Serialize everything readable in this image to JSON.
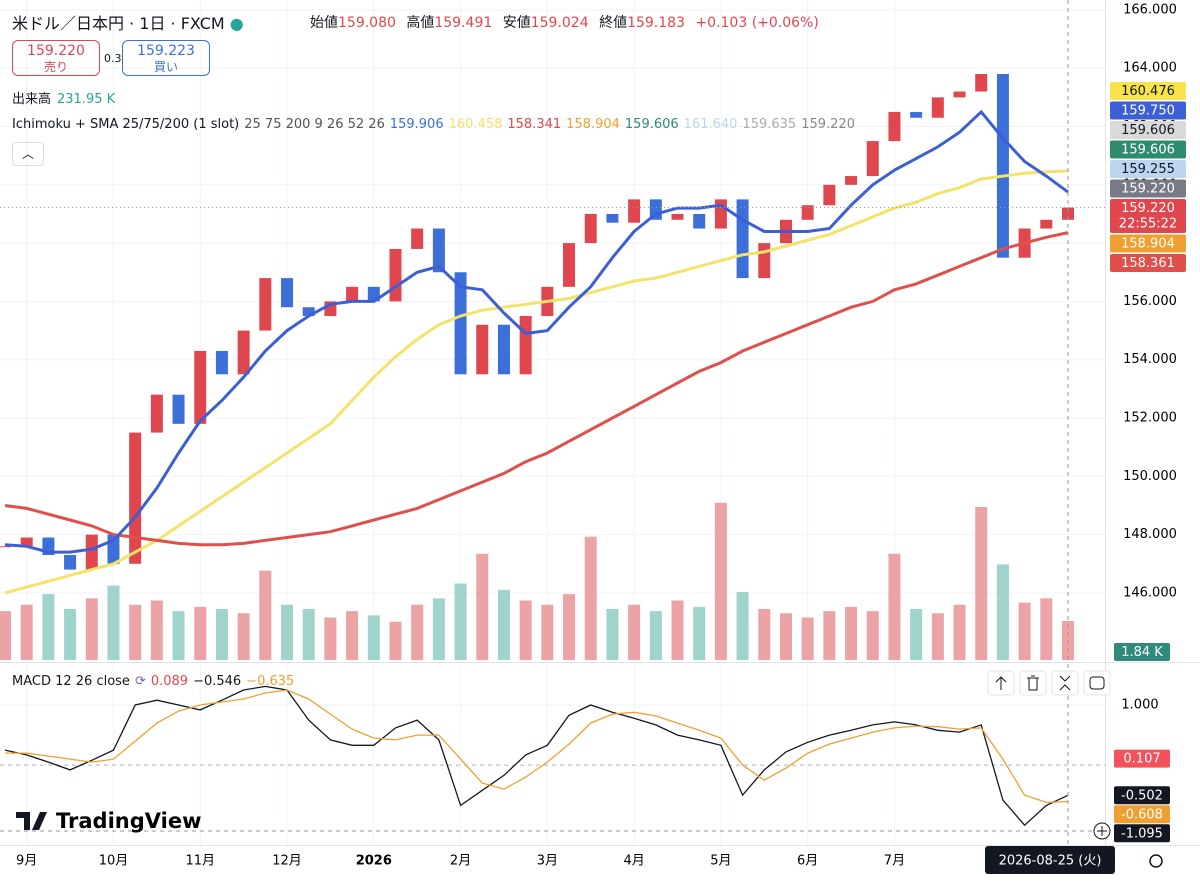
{
  "header": {
    "symbol": "米ドル／日本円 · 1日 · FXCM",
    "ohlc": [
      {
        "label": "始値",
        "value": "159.080"
      },
      {
        "label": "高値",
        "value": "159.491"
      },
      {
        "label": "安値",
        "value": "159.024"
      },
      {
        "label": "終値",
        "value": "159.183"
      }
    ],
    "change": "+0.103 (+0.06%)"
  },
  "trade": {
    "sell_price": "159.220",
    "sell": "売り",
    "spread": "0.3",
    "buy_price": "159.223",
    "buy": "買い"
  },
  "volume_row": {
    "label": "出来高",
    "value": "231.95 K"
  },
  "indicator": {
    "name": "Ichimoku + SMA 25/75/200 (1 slot)",
    "params": "25 75 200 9 26 52 26",
    "values": [
      {
        "text": "159.906",
        "color": "#3d6fd8"
      },
      {
        "text": "160.458",
        "color": "#f3e36a"
      },
      {
        "text": "158.341",
        "color": "#e0464e"
      },
      {
        "text": "158.904",
        "color": "#f0a030"
      },
      {
        "text": "159.606",
        "color": "#2e8b6e"
      },
      {
        "text": "161.640",
        "color": "#bcd6f0"
      },
      {
        "text": "159.635",
        "color": "#aaaaaa"
      },
      {
        "text": "159.220",
        "color": "#888888"
      }
    ]
  },
  "macd_row": {
    "name": "MACD 12 26 close",
    "values": [
      {
        "text": "0.089",
        "color": "#e0464e"
      },
      {
        "text": "−0.546",
        "color": "#131722"
      },
      {
        "text": "−0.635",
        "color": "#f0a030"
      }
    ]
  },
  "crosshair_date": "2026-08-25 (火)",
  "logo": "TradingView",
  "chart_data": {
    "type": "candlestick",
    "categories": [
      null,
      "9月",
      null,
      null,
      null,
      "10月",
      null,
      null,
      null,
      "11月",
      null,
      null,
      null,
      "12月",
      null,
      null,
      null,
      "2026",
      null,
      null,
      null,
      "2月",
      null,
      null,
      null,
      "3月",
      null,
      null,
      null,
      "4月",
      null,
      null,
      null,
      "5月",
      null,
      null,
      null,
      "6月",
      null,
      null,
      null,
      "7月",
      null,
      null,
      null,
      null,
      null,
      null,
      null,
      null
    ],
    "close": [
      147.6,
      147.9,
      147.3,
      146.8,
      148.0,
      147.0,
      151.5,
      152.8,
      151.8,
      154.3,
      153.5,
      155.0,
      156.8,
      155.8,
      155.5,
      156.0,
      156.5,
      156.0,
      157.8,
      158.5,
      157.0,
      153.5,
      155.2,
      153.5,
      155.5,
      156.5,
      158.0,
      159.0,
      158.7,
      159.5,
      158.8,
      159.0,
      158.5,
      159.5,
      156.8,
      158.0,
      158.8,
      159.3,
      160.0,
      160.3,
      161.5,
      162.5,
      162.3,
      163.0,
      163.2,
      163.8,
      157.5,
      158.5,
      158.8,
      159.22
    ],
    "up_color": "#e0464e",
    "down_color": "#3d6fd8",
    "ylim": [
      143.63,
      166.34
    ],
    "yticks": [
      {
        "value": 166,
        "label": "166.000"
      },
      {
        "value": 164,
        "label": "164.000"
      },
      {
        "value": 162,
        "label": "162.000"
      },
      {
        "value": 160,
        "label": "160.000"
      },
      {
        "value": 158,
        "label": "158.000"
      },
      {
        "value": 156,
        "label": "156.000"
      },
      {
        "value": 154,
        "label": "154.000"
      },
      {
        "value": 152,
        "label": "152.000"
      },
      {
        "value": 150,
        "label": "150.000"
      },
      {
        "value": 148,
        "label": "148.000"
      },
      {
        "value": 146,
        "label": "146.000"
      }
    ],
    "grid": true,
    "series": [
      {
        "color": "#f3e36a",
        "values": [
          146.0,
          146.2,
          146.4,
          146.6,
          146.8,
          147.0,
          147.4,
          147.8,
          148.3,
          148.8,
          149.3,
          149.8,
          150.3,
          150.8,
          151.3,
          151.8,
          152.6,
          153.4,
          154.1,
          154.7,
          155.2,
          155.5,
          155.7,
          155.8,
          155.9,
          156.0,
          156.1,
          156.3,
          156.5,
          156.7,
          156.8,
          157.0,
          157.2,
          157.4,
          157.6,
          157.7,
          157.9,
          158.1,
          158.3,
          158.6,
          158.9,
          159.2,
          159.4,
          159.7,
          159.9,
          160.2,
          160.3,
          160.4,
          160.45,
          160.476
        ]
      },
      {
        "color": "#e0504a",
        "values": [
          149.0,
          148.9,
          148.7,
          148.5,
          148.3,
          148.0,
          147.9,
          147.8,
          147.7,
          147.65,
          147.65,
          147.7,
          147.8,
          147.9,
          148.0,
          148.1,
          148.3,
          148.5,
          148.7,
          148.9,
          149.2,
          149.5,
          149.8,
          150.1,
          150.5,
          150.8,
          151.2,
          151.6,
          152.0,
          152.4,
          152.8,
          153.2,
          153.6,
          153.9,
          154.3,
          154.6,
          154.9,
          155.2,
          155.5,
          155.8,
          156.0,
          156.4,
          156.6,
          156.9,
          157.2,
          157.5,
          157.8,
          158.0,
          158.2,
          158.361
        ]
      },
      {
        "color": "#3d5fd6",
        "values": [
          147.65,
          147.6,
          147.4,
          147.4,
          147.5,
          147.8,
          148.6,
          149.6,
          150.8,
          151.9,
          152.6,
          153.4,
          154.3,
          155.0,
          155.5,
          155.9,
          156.0,
          156.0,
          156.5,
          157.0,
          157.2,
          156.5,
          156.4,
          155.6,
          154.9,
          155.0,
          155.8,
          156.5,
          157.5,
          158.4,
          159.0,
          159.2,
          159.2,
          159.3,
          158.8,
          158.4,
          158.4,
          158.4,
          158.5,
          159.3,
          160.0,
          160.5,
          160.9,
          161.3,
          161.8,
          162.5,
          161.6,
          160.8,
          160.3,
          159.75
        ]
      }
    ],
    "price_tags": [
      {
        "value": 160.476,
        "color": "#f7e34a"
      },
      {
        "value": 159.75,
        "label": "159.750",
        "color": "#3d5fd6"
      },
      {
        "value": 159.606,
        "color": "#d9d9d9"
      },
      {
        "value": 159.606,
        "color": "#2e8b6e"
      },
      {
        "value": 159.255,
        "color": "#bcd6f0"
      },
      {
        "value": 159.22,
        "label": "159.220",
        "color": "#787b86"
      },
      {
        "value": 159.22,
        "label": "159.220",
        "sub": "22:55:22",
        "color": "#e0464e"
      },
      {
        "value": 158.904,
        "color": "#f0a030"
      },
      {
        "value": 158.361,
        "color": "#e0504a"
      }
    ],
    "volume": {
      "values": [
        2.3,
        2.6,
        3.1,
        2.4,
        2.9,
        3.5,
        2.6,
        2.8,
        2.3,
        2.5,
        2.4,
        2.2,
        4.2,
        2.6,
        2.4,
        2.0,
        2.3,
        2.1,
        1.8,
        2.6,
        2.9,
        3.6,
        5.0,
        3.3,
        2.8,
        2.6,
        3.1,
        5.8,
        2.4,
        2.6,
        2.3,
        2.8,
        2.5,
        7.4,
        3.2,
        2.4,
        2.2,
        2.0,
        2.3,
        2.5,
        2.3,
        5.0,
        2.4,
        2.2,
        2.6,
        7.2,
        4.5,
        2.7,
        2.9,
        1.84
      ],
      "ylim": [
        0,
        8
      ],
      "up_color": "#eba3a6",
      "down_color": "#9fd3cc",
      "label": "1.84 K",
      "zero": 0
    },
    "macd": {
      "ylim": [
        -1.33,
        1.7
      ],
      "yticks": [
        {
          "value": 1,
          "label": "1.000"
        }
      ],
      "series": [
        {
          "color": "#131722",
          "values": [
            0.25,
            0.17,
            0.05,
            -0.08,
            0.08,
            0.25,
            1.0,
            1.08,
            1.0,
            0.92,
            1.08,
            1.25,
            1.31,
            1.25,
            0.75,
            0.42,
            0.33,
            0.33,
            0.62,
            0.75,
            0.42,
            -0.67,
            -0.42,
            -0.17,
            0.17,
            0.33,
            0.83,
            1.0,
            0.88,
            0.78,
            0.67,
            0.5,
            0.42,
            0.33,
            -0.5,
            -0.08,
            0.22,
            0.38,
            0.5,
            0.58,
            0.67,
            0.72,
            0.67,
            0.58,
            0.55,
            0.67,
            -0.58,
            -1.0,
            -0.67,
            -0.502
          ]
        },
        {
          "color": "#f0a030",
          "values": [
            0.2,
            0.2,
            0.15,
            0.1,
            0.05,
            0.1,
            0.4,
            0.7,
            0.9,
            1.0,
            1.05,
            1.1,
            1.2,
            1.25,
            1.1,
            0.85,
            0.6,
            0.45,
            0.42,
            0.5,
            0.5,
            0.1,
            -0.3,
            -0.4,
            -0.2,
            0.05,
            0.35,
            0.7,
            0.85,
            0.88,
            0.82,
            0.7,
            0.58,
            0.45,
            0.0,
            -0.25,
            -0.05,
            0.2,
            0.35,
            0.45,
            0.55,
            0.62,
            0.65,
            0.64,
            0.6,
            0.62,
            0.1,
            -0.5,
            -0.62,
            -0.608
          ]
        }
      ],
      "tags": [
        {
          "value": 0.107,
          "color": "#f4525b"
        },
        {
          "value": -0.502,
          "color": "#131722"
        },
        {
          "value": -0.608,
          "color": "#f0a030"
        },
        {
          "value": -1.095,
          "color": "#131722"
        }
      ]
    }
  }
}
